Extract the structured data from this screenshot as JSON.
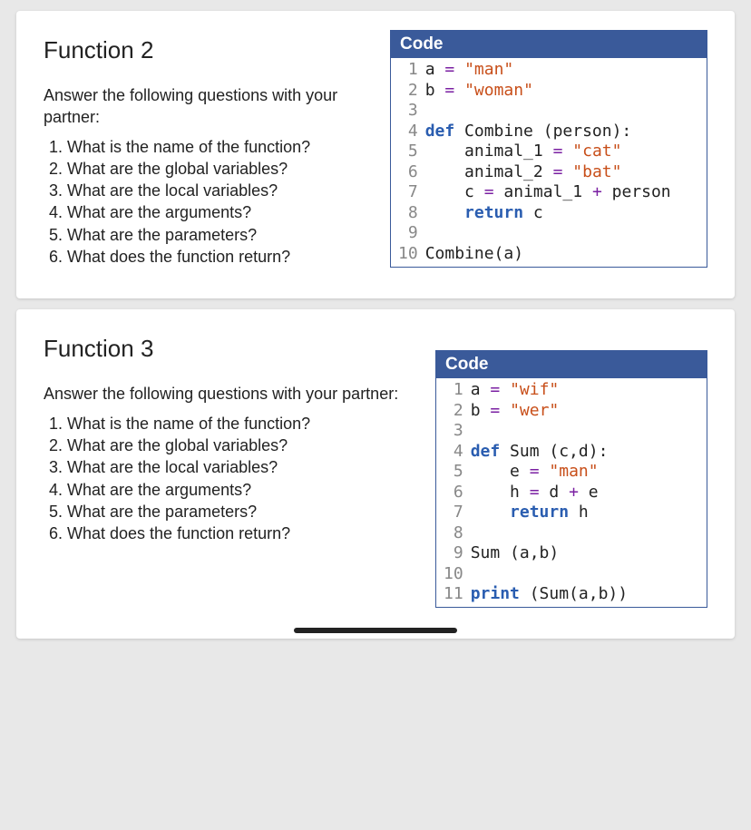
{
  "sections": [
    {
      "title": "Function 2",
      "intro": "Answer the following questions with your partner:",
      "questions": [
        "What is the name of the function?",
        "What are the global variables?",
        "What are the local variables?",
        "What are the arguments?",
        "What are the parameters?",
        "What does the function return?"
      ],
      "code_header": "Code",
      "code_lines": [
        [
          {
            "t": "a "
          },
          {
            "t": "=",
            "c": "op"
          },
          {
            "t": " "
          },
          {
            "t": "\"man\"",
            "c": "s"
          }
        ],
        [
          {
            "t": "b "
          },
          {
            "t": "=",
            "c": "op"
          },
          {
            "t": " "
          },
          {
            "t": "\"woman\"",
            "c": "s"
          }
        ],
        [],
        [
          {
            "t": "def",
            "c": "k"
          },
          {
            "t": " Combine (person):"
          }
        ],
        [
          {
            "t": "    animal_1 "
          },
          {
            "t": "=",
            "c": "op"
          },
          {
            "t": " "
          },
          {
            "t": "\"cat\"",
            "c": "s"
          }
        ],
        [
          {
            "t": "    animal_2 "
          },
          {
            "t": "=",
            "c": "op"
          },
          {
            "t": " "
          },
          {
            "t": "\"bat\"",
            "c": "s"
          }
        ],
        [
          {
            "t": "    c "
          },
          {
            "t": "=",
            "c": "op"
          },
          {
            "t": " animal_1 "
          },
          {
            "t": "+",
            "c": "op"
          },
          {
            "t": " person"
          }
        ],
        [
          {
            "t": "    "
          },
          {
            "t": "return",
            "c": "k"
          },
          {
            "t": " c"
          }
        ],
        [],
        [
          {
            "t": "Combine(a)"
          }
        ]
      ]
    },
    {
      "title": "Function 3",
      "intro": "Answer the following questions with your partner:",
      "questions": [
        "What is the name of the function?",
        "What are the global variables?",
        "What are the local variables?",
        "What are the arguments?",
        "What are the parameters?",
        "What does the function return?"
      ],
      "code_header": "Code",
      "code_lines": [
        [
          {
            "t": "a "
          },
          {
            "t": "=",
            "c": "op"
          },
          {
            "t": " "
          },
          {
            "t": "\"wif\"",
            "c": "s"
          }
        ],
        [
          {
            "t": "b "
          },
          {
            "t": "=",
            "c": "op"
          },
          {
            "t": " "
          },
          {
            "t": "\"wer\"",
            "c": "s"
          }
        ],
        [],
        [
          {
            "t": "def",
            "c": "k"
          },
          {
            "t": " Sum (c,d):"
          }
        ],
        [
          {
            "t": "    e "
          },
          {
            "t": "=",
            "c": "op"
          },
          {
            "t": " "
          },
          {
            "t": "\"man\"",
            "c": "s"
          }
        ],
        [
          {
            "t": "    h "
          },
          {
            "t": "=",
            "c": "op"
          },
          {
            "t": " d "
          },
          {
            "t": "+",
            "c": "op"
          },
          {
            "t": " e"
          }
        ],
        [
          {
            "t": "    "
          },
          {
            "t": "return",
            "c": "k"
          },
          {
            "t": " h"
          }
        ],
        [],
        [
          {
            "t": "Sum (a,b)"
          }
        ],
        [],
        [
          {
            "t": "print",
            "c": "k"
          },
          {
            "t": " (Sum(a,b))"
          }
        ]
      ]
    }
  ]
}
